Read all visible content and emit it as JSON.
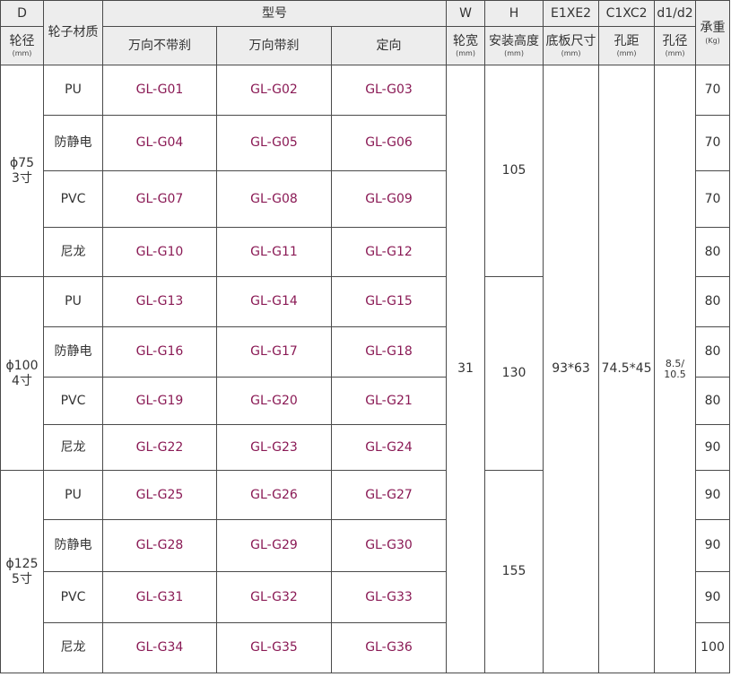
{
  "header": {
    "col_d": "D",
    "col_model": "型号",
    "col_w": "W",
    "col_h": "H",
    "col_e": "E1XE2",
    "col_c": "C1XC2",
    "col_d12": "d1/d2",
    "sub_wheel_dia": "轮径",
    "sub_wheel_dia_unit": "(mm)",
    "sub_material": "轮子材质",
    "sub_swivel_no_brake": "万向不带刹",
    "sub_swivel_brake": "万向带刹",
    "sub_fixed": "定向",
    "sub_wheel_width": "轮宽",
    "sub_wheel_width_unit": "(mm)",
    "sub_install_height": "安装高度",
    "sub_install_height_unit": "(mm)",
    "sub_plate_size": "底板尺寸",
    "sub_plate_size_unit": "(mm)",
    "sub_hole_spacing": "孔距",
    "sub_hole_spacing_unit": "(mm)",
    "sub_hole_dia": "孔径",
    "sub_hole_dia_unit": "(mm)",
    "sub_load": "承重",
    "sub_load_unit": "(Kg)"
  },
  "shared": {
    "wheel_width": "31",
    "plate_size": "93*63",
    "hole_spacing": "74.5*45",
    "hole_dia_line1": "8.5/",
    "hole_dia_line2": "10.5"
  },
  "groups": [
    {
      "dia_line1": "ϕ75",
      "dia_line2": "3寸",
      "install_height": "105"
    },
    {
      "dia_line1": "ϕ100",
      "dia_line2": "4寸",
      "install_height": "130"
    },
    {
      "dia_line1": "ϕ125",
      "dia_line2": "5寸",
      "install_height": "155"
    }
  ],
  "rows": [
    {
      "material": "PU",
      "m1": "GL-G01",
      "m2": "GL-G02",
      "m3": "GL-G03",
      "load": "70"
    },
    {
      "material": "防静电",
      "m1": "GL-G04",
      "m2": "GL-G05",
      "m3": "GL-G06",
      "load": "70"
    },
    {
      "material": "PVC",
      "m1": "GL-G07",
      "m2": "GL-G08",
      "m3": "GL-G09",
      "load": "70"
    },
    {
      "material": "尼龙",
      "m1": "GL-G10",
      "m2": "GL-G11",
      "m3": "GL-G12",
      "load": "80"
    },
    {
      "material": "PU",
      "m1": "GL-G13",
      "m2": "GL-G14",
      "m3": "GL-G15",
      "load": "80"
    },
    {
      "material": "防静电",
      "m1": "GL-G16",
      "m2": "GL-G17",
      "m3": "GL-G18",
      "load": "80"
    },
    {
      "material": "PVC",
      "m1": "GL-G19",
      "m2": "GL-G20",
      "m3": "GL-G21",
      "load": "80"
    },
    {
      "material": "尼龙",
      "m1": "GL-G22",
      "m2": "GL-G23",
      "m3": "GL-G24",
      "load": "90"
    },
    {
      "material": "PU",
      "m1": "GL-G25",
      "m2": "GL-G26",
      "m3": "GL-G27",
      "load": "90"
    },
    {
      "material": "防静电",
      "m1": "GL-G28",
      "m2": "GL-G29",
      "m3": "GL-G30",
      "load": "90"
    },
    {
      "material": "PVC",
      "m1": "GL-G31",
      "m2": "GL-G32",
      "m3": "GL-G33",
      "load": "90"
    },
    {
      "material": "尼龙",
      "m1": "GL-G34",
      "m2": "GL-G35",
      "m3": "GL-G36",
      "load": "100"
    }
  ],
  "colors": {
    "header_bg": "#ededed",
    "model_text": "#8a1a55",
    "border": "#4a4a4a"
  }
}
